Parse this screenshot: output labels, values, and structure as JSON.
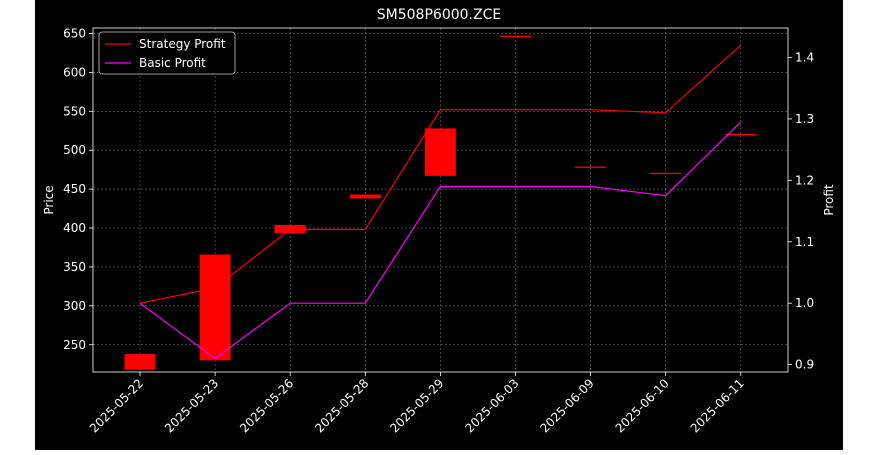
{
  "chart_data": {
    "type": "candlestick+line",
    "title": "SM508P6000.ZCE",
    "xlabel": "",
    "ylabel": "Price",
    "y2label": "Profit",
    "categories": [
      "2025-05-22",
      "2025-05-23",
      "2025-05-26",
      "2025-05-28",
      "2025-05-29",
      "2025-06-03",
      "2025-06-09",
      "2025-06-10",
      "2025-06-11"
    ],
    "ylim": [
      215,
      657
    ],
    "y_ticks": [
      250,
      300,
      350,
      400,
      450,
      500,
      550,
      600,
      650
    ],
    "y2lim": [
      0.888,
      1.448
    ],
    "y2_ticks": [
      0.9,
      1.0,
      1.1,
      1.2,
      1.3,
      1.4
    ],
    "candles": [
      {
        "date": "2025-05-22",
        "open": 238,
        "close": 218,
        "high": 238,
        "low": 218
      },
      {
        "date": "2025-05-23",
        "open": 230,
        "close": 366,
        "high": 366,
        "low": 230
      },
      {
        "date": "2025-05-26",
        "open": 404,
        "close": 393,
        "high": 404,
        "low": 393
      },
      {
        "date": "2025-05-28",
        "open": 443,
        "close": 438,
        "high": 443,
        "low": 438
      },
      {
        "date": "2025-05-29",
        "open": 467,
        "close": 528,
        "high": 528,
        "low": 467
      },
      {
        "date": "2025-06-03",
        "open": 647,
        "close": 647,
        "high": 647,
        "low": 647
      },
      {
        "date": "2025-06-09",
        "open": 479,
        "close": 479,
        "high": 479,
        "low": 479
      },
      {
        "date": "2025-06-10",
        "open": 471,
        "close": 471,
        "high": 471,
        "low": 471
      },
      {
        "date": "2025-06-11",
        "open": 521,
        "close": 521,
        "high": 521,
        "low": 521
      }
    ],
    "series": [
      {
        "name": "Strategy Profit",
        "color": "#ff0000",
        "axis": "right",
        "values": [
          1.0,
          1.025,
          1.12,
          1.12,
          1.315,
          null,
          1.315,
          1.31,
          1.42
        ]
      },
      {
        "name": "Basic Profit",
        "color": "#ff00ff",
        "axis": "right",
        "values": [
          1.0,
          0.91,
          1.0,
          1.0,
          1.19,
          null,
          1.19,
          1.175,
          1.295
        ]
      }
    ],
    "grid": true,
    "legend": "top-left"
  },
  "colors": {
    "background": "#000000",
    "candle": "#ff0000",
    "grid": "#808080",
    "text": "#ffffff"
  }
}
